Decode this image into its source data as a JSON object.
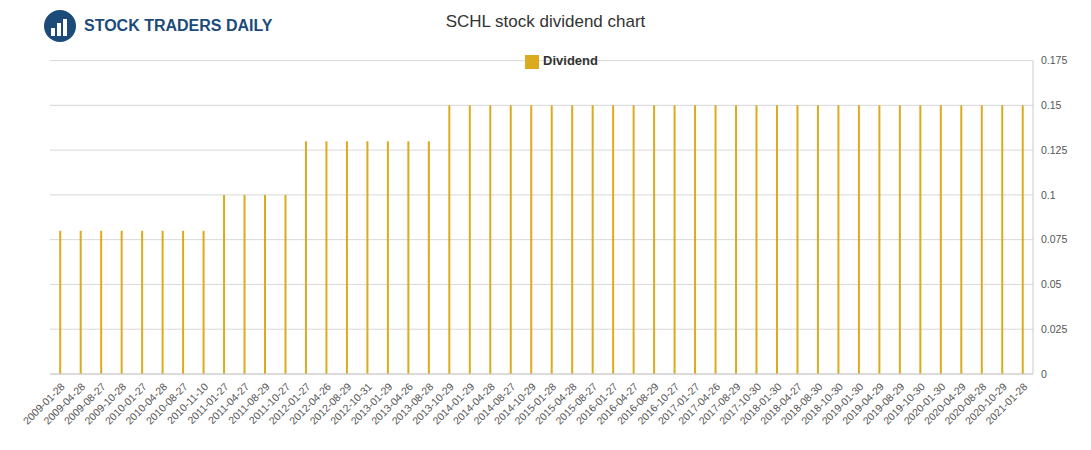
{
  "chart_data": {
    "type": "bar",
    "title": "SCHL stock dividend chart",
    "annotations": [
      "STOCK TRADERS DAILY"
    ],
    "categories": [
      "2009-01-28",
      "2009-04-28",
      "2009-08-27",
      "2009-10-28",
      "2010-01-27",
      "2010-04-28",
      "2010-08-27",
      "2010-11-10",
      "2011-01-27",
      "2011-04-27",
      "2011-08-29",
      "2011-10-27",
      "2012-01-27",
      "2012-04-26",
      "2012-08-29",
      "2012-10-31",
      "2013-01-29",
      "2013-04-26",
      "2013-08-28",
      "2013-10-29",
      "2014-01-29",
      "2014-04-28",
      "2014-08-27",
      "2014-10-29",
      "2015-01-28",
      "2015-04-28",
      "2015-08-27",
      "2016-01-27",
      "2016-04-27",
      "2016-08-29",
      "2016-10-27",
      "2017-01-27",
      "2017-04-26",
      "2017-08-29",
      "2017-10-30",
      "2018-01-30",
      "2018-04-27",
      "2018-08-30",
      "2018-10-30",
      "2019-01-30",
      "2019-04-29",
      "2019-08-29",
      "2019-10-30",
      "2020-01-30",
      "2020-04-29",
      "2020-08-28",
      "2020-10-29",
      "2021-01-28"
    ],
    "series": [
      {
        "name": "Dividend",
        "color": "#dbab1d",
        "values": [
          0.08,
          0.08,
          0.08,
          0.08,
          0.08,
          0.08,
          0.08,
          0.08,
          0.1,
          0.1,
          0.1,
          0.1,
          0.13,
          0.13,
          0.13,
          0.13,
          0.13,
          0.13,
          0.13,
          0.15,
          0.15,
          0.15,
          0.15,
          0.15,
          0.15,
          0.15,
          0.15,
          0.15,
          0.15,
          0.15,
          0.15,
          0.15,
          0.15,
          0.15,
          0.15,
          0.15,
          0.15,
          0.15,
          0.15,
          0.15,
          0.15,
          0.15,
          0.15,
          0.15,
          0.15,
          0.15,
          0.15,
          0.15
        ]
      }
    ],
    "ylim": [
      0,
      0.175
    ],
    "yticks": [
      0,
      0.025,
      0.05,
      0.075,
      0.1,
      0.125,
      0.15,
      0.175
    ],
    "grid": true,
    "legend": "top"
  }
}
